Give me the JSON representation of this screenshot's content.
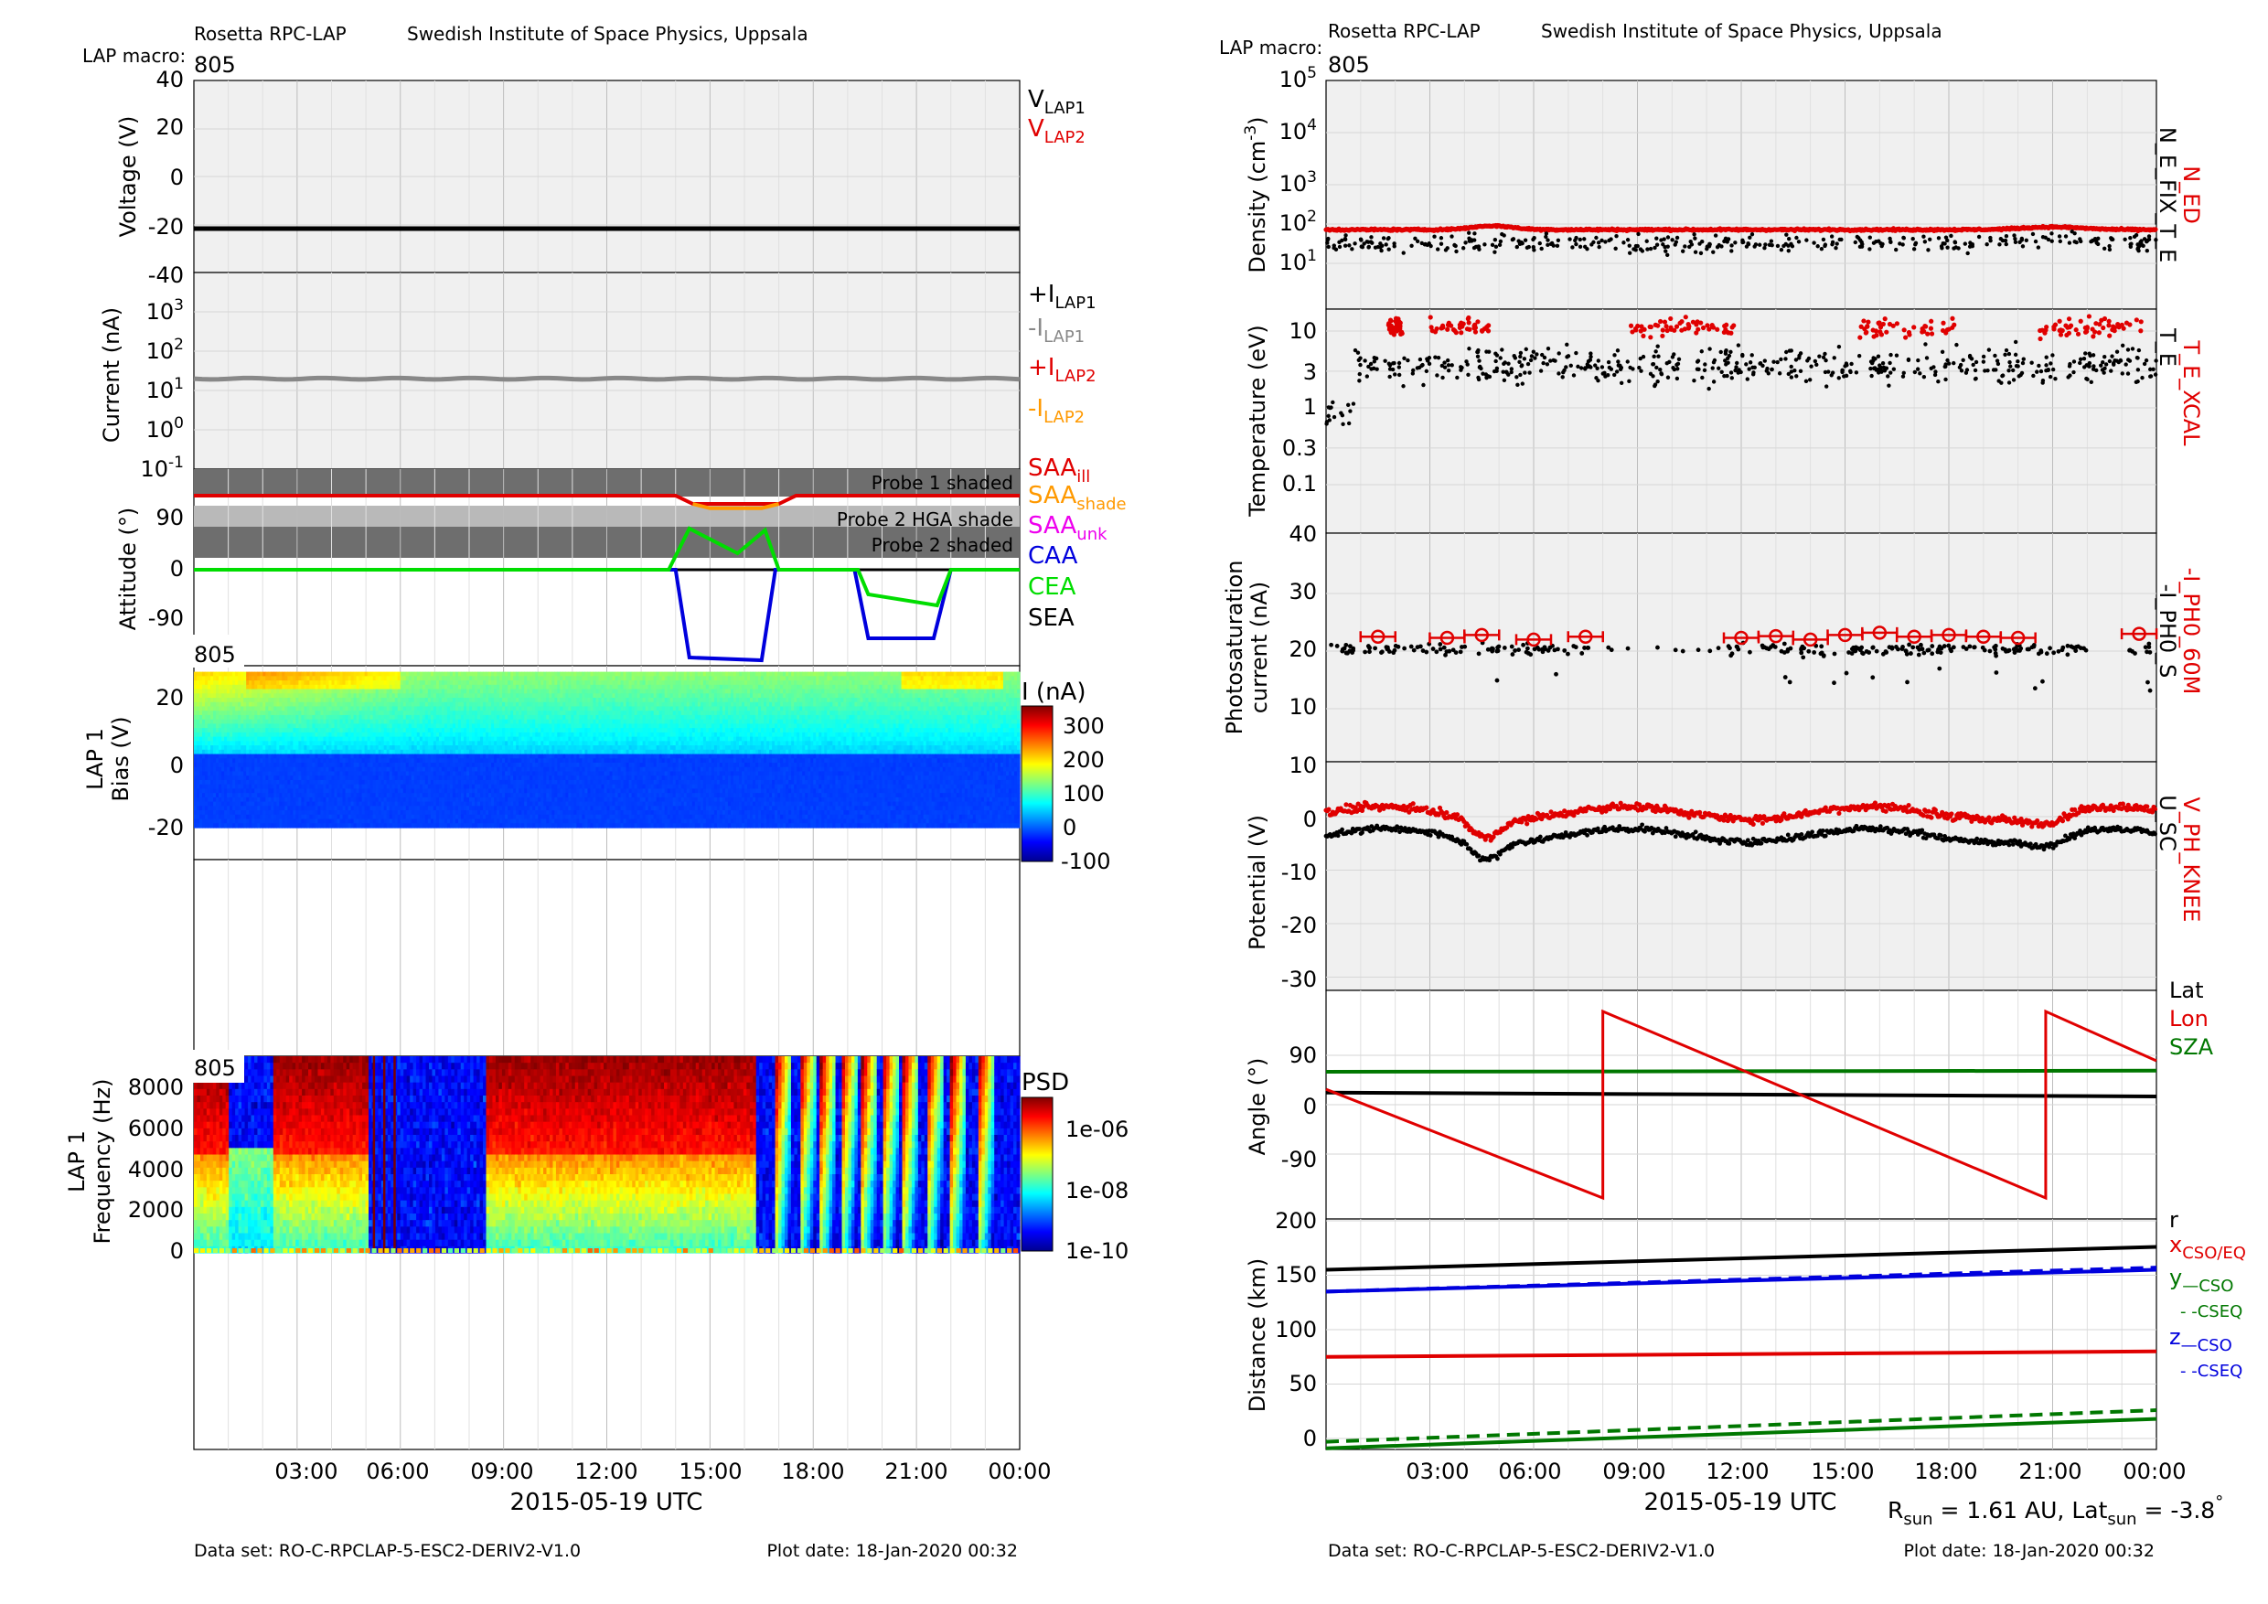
{
  "left": {
    "header": {
      "mission": "Rosetta RPC-LAP",
      "institute": "Swedish Institute of Space Physics, Uppsala",
      "macro_label": "LAP macro:",
      "macro_value": "805"
    },
    "voltage_panel": {
      "ylabel": "Voltage (V)",
      "yticks": [
        "40",
        "20",
        "0",
        "-20",
        "-40"
      ],
      "ylim": [
        -40,
        40
      ],
      "legend": [
        {
          "base": "V",
          "sub": "LAP1",
          "color": "#000000"
        },
        {
          "base": "V",
          "sub": "LAP2",
          "color": "#e00000"
        }
      ],
      "series": [
        {
          "name": "V_LAP1",
          "value": -20,
          "color": "#000000"
        }
      ]
    },
    "current_panel": {
      "ylabel": "Current (nA)",
      "yticks": [
        {
          "base": "10",
          "exp": "3"
        },
        {
          "base": "10",
          "exp": "2"
        },
        {
          "base": "10",
          "exp": "1"
        },
        {
          "base": "10",
          "exp": "0"
        },
        {
          "base": "10",
          "exp": "-1"
        }
      ],
      "legend": [
        {
          "base": "+I",
          "sub": "LAP1",
          "color": "#000000"
        },
        {
          "base": "-I",
          "sub": "LAP1",
          "color": "#888888"
        },
        {
          "base": "+I",
          "sub": "LAP2",
          "color": "#e00000"
        },
        {
          "base": "-I",
          "sub": "LAP2",
          "color": "#ff9900"
        }
      ],
      "series": [
        {
          "name": "-I_LAP1",
          "log10_value": 1.3,
          "color": "#888888"
        }
      ]
    },
    "attitude_panel": {
      "ylabel": "Attitude (°)",
      "yticks": [
        "90",
        "0",
        "-90"
      ],
      "shade_labels": [
        "Probe 1 shaded",
        "Probe 2 HGA shade",
        "Probe 2 shaded"
      ],
      "legend": [
        {
          "base": "SAA",
          "sub": "ill",
          "color": "#e00000"
        },
        {
          "base": "SAA",
          "sub": "shade",
          "color": "#ff9900"
        },
        {
          "base": "SAA",
          "sub": "unk",
          "color": "#ee00ee"
        },
        {
          "base": "CAA",
          "sub": "",
          "color": "#0000dd"
        },
        {
          "base": "CEA",
          "sub": "",
          "color": "#00dd00"
        },
        {
          "base": "SEA",
          "sub": "",
          "color": "#000000"
        }
      ]
    },
    "bias_panel": {
      "macro_tag": "805",
      "ylabel": [
        "LAP 1",
        "Bias (V)"
      ],
      "yticks": [
        "20",
        "0",
        "-20"
      ],
      "colorbar_title": "I (nA)",
      "colorbar_ticks": [
        "300",
        "200",
        "100",
        "0",
        "-100"
      ]
    },
    "psd_panel": {
      "macro_tag": "805",
      "ylabel": [
        "LAP 1",
        "Frequency (Hz)"
      ],
      "yticks": [
        "8000",
        "6000",
        "4000",
        "2000",
        "0"
      ],
      "colorbar_title": "PSD",
      "colorbar_ticks": [
        "1e-06",
        "1e-08",
        "1e-10"
      ]
    },
    "xticks": [
      "03:00",
      "06:00",
      "09:00",
      "12:00",
      "15:00",
      "18:00",
      "21:00",
      "00:00"
    ],
    "xlabel": "2015-05-19 UTC",
    "footer": {
      "dataset": "Data set: RO-C-RPCLAP-5-ESC2-DERIV2-V1.0",
      "plot_date": "Plot date: 18-Jan-2020 00:32"
    }
  },
  "right": {
    "header": {
      "mission": "Rosetta RPC-LAP",
      "institute": "Swedish Institute of Space Physics, Uppsala",
      "macro_label": "LAP macro:",
      "macro_value": "805"
    },
    "density_panel": {
      "ylabel": "Density (cm",
      "ylabel_exp": "-3",
      "ylabel_end": ")",
      "yticks": [
        {
          "base": "10",
          "exp": "5"
        },
        {
          "base": "10",
          "exp": "4"
        },
        {
          "base": "10",
          "exp": "3"
        },
        {
          "base": "10",
          "exp": "2"
        },
        {
          "base": "10",
          "exp": "1"
        }
      ],
      "legend": [
        {
          "text": "N_ED",
          "color": "#e00000"
        },
        {
          "text": "N_E_FIX_T_E",
          "color": "#000000"
        }
      ]
    },
    "temperature_panel": {
      "ylabel": "Temperature (eV)",
      "yticks": [
        "10",
        "3",
        "1",
        "0.3",
        "0.1"
      ],
      "legend": [
        {
          "text": "T_E_XCAL",
          "color": "#e00000"
        },
        {
          "text": "T_E",
          "color": "#000000"
        }
      ]
    },
    "photo_panel": {
      "ylabel": [
        "Photosaturation",
        "current (nA)"
      ],
      "yticks": [
        "40",
        "30",
        "20",
        "10"
      ],
      "legend": [
        {
          "text": "-I_PH0_60M",
          "color": "#e00000"
        },
        {
          "text": "-I_PH0_S",
          "color": "#000000"
        }
      ]
    },
    "potential_panel": {
      "ylabel": "Potential (V)",
      "yticks": [
        "10",
        "0",
        "-10",
        "-20",
        "-30"
      ],
      "legend": [
        {
          "text": "V_PH_KNEE",
          "color": "#e00000"
        },
        {
          "text": "U_SC",
          "color": "#000000"
        }
      ]
    },
    "angle_panel": {
      "ylabel": "Angle (°)",
      "yticks": [
        "90",
        "0",
        "-90"
      ],
      "legend": [
        {
          "text": "Lat",
          "color": "#000000"
        },
        {
          "text": "Lon",
          "color": "#e00000"
        },
        {
          "text": "SZA",
          "color": "#007700"
        }
      ]
    },
    "distance_panel": {
      "ylabel": "Distance (km)",
      "yticks": [
        "200",
        "150",
        "100",
        "50",
        "0"
      ],
      "legend": [
        {
          "base": "r",
          "sub": "",
          "color": "#000000"
        },
        {
          "base": "x",
          "sub": "CSO/EQ",
          "color": "#e00000"
        },
        {
          "base": "y",
          "sub": "—CSO",
          "color": "#007700"
        },
        {
          "base": "",
          "sub": "- -CSEQ",
          "color": "#007700"
        },
        {
          "base": "z",
          "sub": "—CSO",
          "color": "#0000dd"
        },
        {
          "base": "",
          "sub": "- -CSEQ",
          "color": "#0000dd"
        }
      ]
    },
    "xticks": [
      "03:00",
      "06:00",
      "09:00",
      "12:00",
      "15:00",
      "18:00",
      "21:00",
      "00:00"
    ],
    "xlabel": "2015-05-19 UTC",
    "sun_info": {
      "r_base": "R",
      "r_sub": "sun",
      "r_value": " = 1.61 AU, Lat",
      "lat_sub": "sun",
      "lat_value": " = -3.8",
      "degree": "°"
    },
    "footer": {
      "dataset": "Data set: RO-C-RPCLAP-5-ESC2-DERIV2-V1.0",
      "plot_date": "Plot date: 18-Jan-2020 00:32"
    }
  },
  "chart_data": [
    {
      "type": "line",
      "title": "Voltage",
      "x_range": [
        "2015-05-19 00:00",
        "2015-05-20 00:00"
      ],
      "ylim": [
        -40,
        40
      ],
      "series": [
        {
          "name": "V_LAP1",
          "x": [
            0,
            24
          ],
          "y": [
            -20,
            -20
          ]
        }
      ]
    },
    {
      "type": "line",
      "title": "Current",
      "yscale": "log",
      "ylim": [
        0.1,
        10000
      ],
      "series": [
        {
          "name": "-I_LAP1",
          "x": [
            0,
            24
          ],
          "y": [
            20,
            20
          ]
        }
      ]
    },
    {
      "type": "line",
      "title": "Attitude",
      "series": [
        {
          "name": "SAA_ill",
          "x": [
            0,
            14,
            14.5,
            17,
            17.5,
            24
          ],
          "y": [
            135,
            135,
            120,
            120,
            135,
            135
          ]
        },
        {
          "name": "SAA_shade",
          "x": [
            14.5,
            15,
            16.5,
            17
          ],
          "y": [
            120,
            112,
            112,
            120
          ]
        },
        {
          "name": "CAA",
          "x": [
            0,
            14,
            14.4,
            16.5,
            16.9,
            19.2,
            19.6,
            21.5,
            22,
            24
          ],
          "y": [
            0,
            0,
            -160,
            -165,
            0,
            0,
            -125,
            -125,
            0,
            0
          ]
        },
        {
          "name": "CEA",
          "x": [
            0,
            13.8,
            14.4,
            15.8,
            16.6,
            17.0,
            19.3,
            19.6,
            21.6,
            22.0,
            24
          ],
          "y": [
            0,
            0,
            75,
            30,
            72,
            0,
            0,
            -45,
            -65,
            0,
            0
          ]
        },
        {
          "name": "SEA",
          "x": [
            14,
            24
          ],
          "y": [
            0,
            0
          ]
        }
      ]
    },
    {
      "type": "heatmap",
      "title": "LAP 1 Bias",
      "y_range": [
        -20,
        28
      ],
      "color_range": [
        -100,
        330
      ]
    },
    {
      "type": "heatmap",
      "title": "LAP 1 Frequency",
      "y_range": [
        0,
        9000
      ],
      "color_range_log10": [
        -10,
        -5.5
      ]
    },
    {
      "type": "scatter",
      "title": "Density",
      "yscale": "log",
      "series": [
        {
          "name": "N_ED",
          "typical": 80
        },
        {
          "name": "N_E_FIX_T_E",
          "typical": 50
        }
      ]
    },
    {
      "type": "scatter",
      "title": "Temperature",
      "yscale": "log",
      "series": [
        {
          "name": "T_E_XCAL",
          "typical": 12
        },
        {
          "name": "T_E",
          "typical": 3.5
        }
      ]
    },
    {
      "type": "scatter",
      "title": "Photosaturation current",
      "series": [
        {
          "name": "-I_PH0_60M",
          "x": [
            1.5,
            3.5,
            4.5,
            6.0,
            7.5,
            12.0,
            13.0,
            14.0,
            15.0,
            16.0,
            17.0,
            18.0,
            19.0,
            20.0,
            23.5
          ],
          "y": [
            22.5,
            22.3,
            22.8,
            22,
            22.5,
            22.3,
            22.6,
            22,
            22.8,
            23.2,
            22.5,
            22.8,
            22.5,
            22.3,
            23
          ]
        },
        {
          "name": "-I_PH0_S",
          "typical": 20
        }
      ]
    },
    {
      "type": "scatter",
      "title": "Potential",
      "series": [
        {
          "name": "V_PH_KNEE",
          "typical": 0
        },
        {
          "name": "U_SC",
          "typical": -4
        }
      ]
    },
    {
      "type": "line",
      "title": "Angle",
      "series": [
        {
          "name": "Lat",
          "x": [
            0,
            24
          ],
          "y": [
            22,
            15
          ]
        },
        {
          "name": "Lon",
          "x": [
            0,
            8.0,
            8.0,
            20.8,
            20.8,
            24
          ],
          "y": [
            28,
            -170,
            170,
            -170,
            170,
            80
          ]
        },
        {
          "name": "SZA",
          "x": [
            0,
            24
          ],
          "y": [
            60,
            62
          ]
        }
      ]
    },
    {
      "type": "line",
      "title": "Distance",
      "series": [
        {
          "name": "r",
          "x": [
            0,
            24
          ],
          "y": [
            155,
            176
          ]
        },
        {
          "name": "x_CSO/EQ",
          "x": [
            0,
            24
          ],
          "y": [
            75,
            80
          ]
        },
        {
          "name": "y_CSO",
          "x": [
            0,
            24
          ],
          "y": [
            -9,
            18
          ]
        },
        {
          "name": "y_CSEQ",
          "x": [
            0,
            24
          ],
          "y": [
            -3,
            26
          ]
        },
        {
          "name": "z_CSO",
          "x": [
            0,
            24
          ],
          "y": [
            135,
            155
          ]
        },
        {
          "name": "z_CSEQ",
          "x": [
            0,
            24
          ],
          "y": [
            135,
            157
          ]
        }
      ]
    }
  ]
}
